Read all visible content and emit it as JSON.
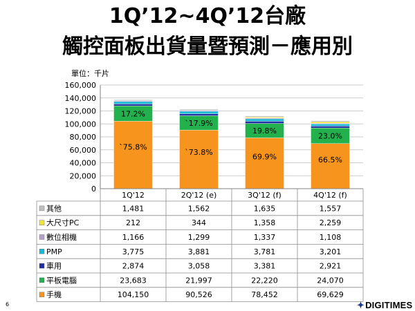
{
  "page": {
    "title_line1": "1Q’12~4Q’12台廠",
    "title_line2": "觸控面板出貨量暨預測－應用別",
    "unit_label": "單位：千片",
    "page_number": "6",
    "logo_text": "DIGITIMES"
  },
  "chart_data": {
    "type": "bar",
    "stacked": true,
    "ylim": [
      0,
      160000
    ],
    "y_ticks": [
      "0",
      "20,000",
      "40,000",
      "60,000",
      "80,000",
      "100,000",
      "120,000",
      "140,000",
      "160,000"
    ],
    "grid": true,
    "categories": [
      "1Q'12",
      "2Q'12 (e)",
      "3Q'12 (f)",
      "4Q'12 (f)"
    ],
    "series": [
      {
        "name": "手機",
        "color": "#F7941D",
        "values": [
          104150,
          90526,
          78452,
          69629
        ],
        "display": [
          "104,150",
          "90,526",
          "78,452",
          "69,629"
        ]
      },
      {
        "name": "平板電腦",
        "color": "#22B14C",
        "values": [
          23683,
          21997,
          22220,
          24070
        ],
        "display": [
          "23,683",
          "21,997",
          "22,220",
          "24,070"
        ]
      },
      {
        "name": "車用",
        "color": "#1F2F9F",
        "values": [
          2874,
          3058,
          3381,
          2921
        ],
        "display": [
          "2,874",
          "3,058",
          "3,381",
          "2,921"
        ]
      },
      {
        "name": "PMP",
        "color": "#17B9D4",
        "values": [
          3775,
          3881,
          3781,
          3201
        ],
        "display": [
          "3,775",
          "3,881",
          "3,781",
          "3,201"
        ]
      },
      {
        "name": "數位相機",
        "color": "#B3A2C7",
        "values": [
          1166,
          1299,
          1337,
          1108
        ],
        "display": [
          "1,166",
          "1,299",
          "1,337",
          "1,108"
        ]
      },
      {
        "name": "大尺寸PC",
        "color": "#F2E437",
        "values": [
          212,
          344,
          1358,
          2259
        ],
        "display": [
          "212",
          "344",
          "1,358",
          "2,259"
        ]
      },
      {
        "name": "其他",
        "color": "#BFBFBF",
        "values": [
          1481,
          1562,
          1635,
          1557
        ],
        "display": [
          "1,481",
          "1,562",
          "1,635",
          "1,557"
        ]
      }
    ],
    "table_row_order": [
      "其他",
      "大尺寸PC",
      "數位相機",
      "PMP",
      "車用",
      "平板電腦",
      "手機"
    ],
    "annotations": {
      "手機": [
        "`75.8%",
        "`73.8%",
        "69.9%",
        "66.5%"
      ],
      "平板電腦": [
        "17.2%",
        "`17.9%",
        "19.8%",
        "23.0%"
      ]
    }
  }
}
